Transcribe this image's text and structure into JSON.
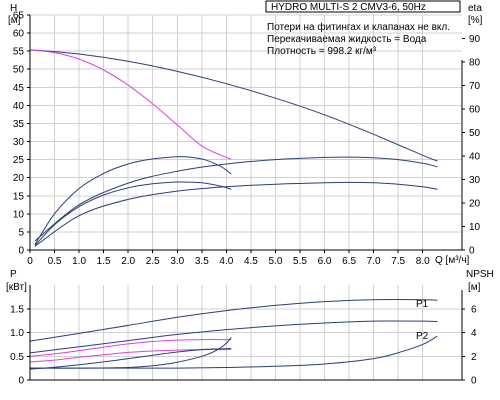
{
  "chart_data": [
    {
      "type": "line",
      "id": "head",
      "title": "HYDRO MULTI-S 2 CMV3-6, 50Hz",
      "notes": [
        "Потери на фитингах и клапанах не вкл.",
        "Перекачиваемая жидкость = Вода",
        "Плотность = 998.2 кг/м³"
      ],
      "xlabel": "Q [м³/ч]",
      "ylabel_left": "H",
      "ylabel_left_unit": "[м]",
      "ylabel_right": "eta",
      "ylabel_right_unit": "[%]",
      "xlim": [
        0,
        8.8
      ],
      "ylim": [
        0,
        65
      ],
      "y2lim": [
        0,
        100
      ],
      "xticks": [
        "0",
        "0.5",
        "1.0",
        "1.5",
        "2.0",
        "2.5",
        "3.0",
        "3.5",
        "4.0",
        "4.5",
        "5.0",
        "5.5",
        "6.0",
        "6.5",
        "7.0",
        "7.5",
        "8.0"
      ],
      "yticks": [
        "0",
        "5",
        "10",
        "15",
        "20",
        "25",
        "30",
        "35",
        "40",
        "45",
        "50",
        "55",
        "60",
        "65"
      ],
      "y2ticks": [
        "0",
        "10",
        "20",
        "30",
        "40",
        "50",
        "60",
        "70",
        "80",
        "90"
      ],
      "grid": true,
      "series": [
        {
          "color": "#2b3f7a",
          "axis": "left",
          "x": [
            0,
            1,
            2,
            3,
            4,
            5,
            6,
            7,
            8,
            8.3
          ],
          "y": [
            55.4,
            54.2,
            52.2,
            49.4,
            46.0,
            42.0,
            37.4,
            32.0,
            26.2,
            24.6
          ]
        },
        {
          "color": "#e040e0",
          "axis": "left",
          "x": [
            0,
            0.5,
            1,
            1.5,
            2,
            2.5,
            3,
            3.5,
            4,
            4.1
          ],
          "y": [
            55.4,
            54.6,
            52.8,
            49.8,
            45.6,
            40.4,
            34.6,
            28.8,
            25.6,
            25.2
          ]
        },
        {
          "color": "#2b3f7a",
          "axis": "left",
          "x": [
            0.1,
            0.5,
            1,
            1.5,
            2,
            2.5,
            3,
            3.3,
            3.6,
            3.9,
            4.1
          ],
          "y": [
            1.5,
            10,
            17,
            21.2,
            23.8,
            25.2,
            25.8,
            25.6,
            24.8,
            23.0,
            21.0
          ]
        },
        {
          "color": "#2b3f7a",
          "axis": "left",
          "x": [
            0.1,
            0.5,
            1,
            1.5,
            2,
            2.5,
            3,
            3.5,
            3.9,
            4.1
          ],
          "y": [
            1.2,
            7.0,
            12.0,
            15.2,
            17.2,
            18.3,
            18.8,
            18.6,
            17.6,
            16.8
          ]
        },
        {
          "color": "#2b3f7a",
          "axis": "left",
          "x": [
            0.1,
            1,
            2,
            3,
            4,
            5,
            6,
            6.5,
            7,
            7.5,
            8,
            8.3
          ],
          "y": [
            2.5,
            12.5,
            18.5,
            21.8,
            23.8,
            25.0,
            25.6,
            25.7,
            25.5,
            25.0,
            24.0,
            23.0
          ]
        },
        {
          "color": "#2b3f7a",
          "axis": "left",
          "x": [
            0.1,
            1,
            2,
            3,
            4,
            5,
            6,
            6.5,
            7,
            7.5,
            8,
            8.3
          ],
          "y": [
            1.0,
            9.5,
            14.0,
            16.3,
            17.5,
            18.2,
            18.6,
            18.7,
            18.6,
            18.2,
            17.5,
            16.8
          ]
        }
      ]
    },
    {
      "type": "line",
      "id": "power",
      "ylabel_left": "P",
      "ylabel_left_unit": "[кВт]",
      "ylabel_right": "NPSH",
      "ylabel_right_unit": "[м]",
      "xlim": [
        0,
        8.8
      ],
      "ylim": [
        0,
        2.0
      ],
      "y2lim": [
        0,
        8
      ],
      "yticks": [
        "0",
        "0.5",
        "1.0",
        "1.5"
      ],
      "y2ticks": [
        "0",
        "2",
        "4",
        "6"
      ],
      "grid": true,
      "series": [
        {
          "name": "P1",
          "color": "#2b3f7a",
          "axis": "left",
          "x": [
            0,
            1,
            2,
            3,
            4,
            5,
            6,
            7,
            8,
            8.3
          ],
          "y": [
            0.82,
            0.98,
            1.15,
            1.32,
            1.46,
            1.57,
            1.65,
            1.69,
            1.69,
            1.68
          ]
        },
        {
          "name": "P2",
          "color": "#2b3f7a",
          "axis": "left",
          "x": [
            0,
            1,
            2,
            3,
            4,
            5,
            6,
            7,
            8,
            8.3
          ],
          "y": [
            0.57,
            0.7,
            0.83,
            0.96,
            1.06,
            1.14,
            1.2,
            1.24,
            1.24,
            1.23
          ]
        },
        {
          "color": "#e040e0",
          "axis": "left",
          "x": [
            0,
            0.5,
            1,
            1.5,
            2,
            2.5,
            3,
            3.5,
            4,
            4.1
          ],
          "y": [
            0.5,
            0.55,
            0.62,
            0.69,
            0.76,
            0.81,
            0.84,
            0.85,
            0.85,
            0.85
          ]
        },
        {
          "color": "#e040e0",
          "axis": "left",
          "x": [
            0,
            0.5,
            1,
            1.5,
            2,
            2.5,
            3,
            3.5,
            4,
            4.1
          ],
          "y": [
            0.38,
            0.42,
            0.48,
            0.53,
            0.58,
            0.61,
            0.63,
            0.64,
            0.64,
            0.64
          ]
        },
        {
          "color": "#2b3f7a",
          "axis": "left",
          "x": [
            0,
            0.5,
            1,
            1.5,
            2,
            2.5,
            3,
            3.5,
            4,
            4.1
          ],
          "y": [
            0.23,
            0.27,
            0.32,
            0.38,
            0.45,
            0.52,
            0.59,
            0.64,
            0.66,
            0.67
          ]
        },
        {
          "color": "#2b3f7a",
          "axis": "right",
          "x": [
            0,
            1,
            2,
            2.5,
            3,
            3.5,
            3.8,
            4,
            4.1
          ],
          "y": [
            1.0,
            1.0,
            1.05,
            1.2,
            1.5,
            2.0,
            2.5,
            3.1,
            3.6
          ]
        },
        {
          "color": "#2b3f7a",
          "axis": "right",
          "x": [
            0,
            1,
            2,
            3,
            4,
            5,
            6,
            7,
            7.5,
            8,
            8.3
          ],
          "y": [
            1.0,
            1.0,
            1.0,
            1.0,
            1.05,
            1.15,
            1.35,
            1.8,
            2.3,
            3.0,
            3.7
          ]
        }
      ]
    }
  ]
}
